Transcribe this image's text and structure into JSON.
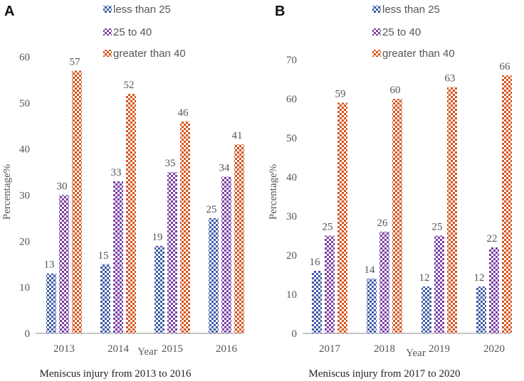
{
  "colors": {
    "blue": "#3e5ba8",
    "purple": "#7a3fa6",
    "orange": "#d4541f",
    "axis": "#8c8c8c",
    "text": "#444444"
  },
  "chart_data": [
    {
      "panel": "A",
      "type": "bar",
      "title": "Meniscus injury from 2013 to 2016",
      "xlabel": "Year",
      "ylabel": "Percentage%",
      "ylim": [
        0,
        60
      ],
      "yticks": [
        "0",
        "10",
        "20",
        "30",
        "40",
        "50",
        "60"
      ],
      "categories": [
        "2013",
        "2014",
        "2015",
        "2016"
      ],
      "series": [
        {
          "name": "less than 25",
          "values": [
            13,
            15,
            19,
            25
          ]
        },
        {
          "name": "25 to 40",
          "values": [
            30,
            33,
            35,
            34
          ]
        },
        {
          "name": "greater than 40",
          "values": [
            57,
            52,
            46,
            41
          ]
        }
      ]
    },
    {
      "panel": "B",
      "type": "bar",
      "title": "Meniscus injury from 2017 to 2020",
      "xlabel": "Year",
      "ylabel": "Percentage%",
      "ylim": [
        0,
        70
      ],
      "yticks": [
        "0",
        "10",
        "20",
        "30",
        "40",
        "50",
        "60",
        "70"
      ],
      "categories": [
        "2017",
        "2018",
        "2019",
        "2020"
      ],
      "series": [
        {
          "name": "less than 25",
          "values": [
            16,
            14,
            12,
            12
          ]
        },
        {
          "name": "25 to 40",
          "values": [
            25,
            26,
            25,
            22
          ]
        },
        {
          "name": "greater than 40",
          "values": [
            59,
            60,
            63,
            66
          ]
        }
      ]
    }
  ]
}
